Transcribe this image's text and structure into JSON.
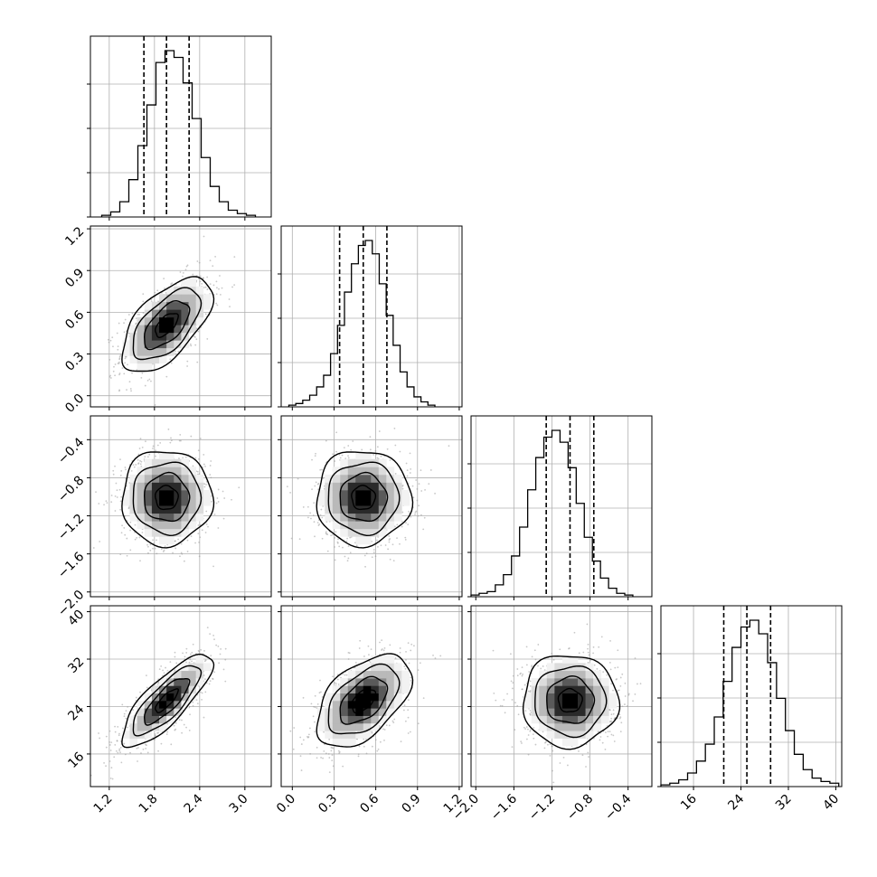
{
  "chart_data": {
    "type": "corner",
    "grid": true,
    "n_params": 4,
    "ranges": [
      [
        0.95,
        3.35
      ],
      [
        -0.08,
        1.22
      ],
      [
        -2.05,
        -0.15
      ],
      [
        10.5,
        41
      ]
    ],
    "quantiles": [
      [
        1.66,
        1.96,
        2.26
      ],
      [
        0.34,
        0.51,
        0.68
      ],
      [
        -1.26,
        -1.01,
        -0.76
      ],
      [
        21.1,
        25.0,
        29.0
      ]
    ],
    "diag_ticks": [
      [
        1.2,
        1.8,
        2.4,
        3.0
      ],
      [
        0.0,
        0.3,
        0.6,
        0.9,
        1.2
      ],
      [
        -2.0,
        -1.6,
        -1.2,
        -0.8,
        -0.4
      ],
      [
        16,
        24,
        32,
        40
      ]
    ],
    "tick_labels": [
      [
        "1.2",
        "1.8",
        "2.4",
        "3.0"
      ],
      [
        "0.0",
        "0.3",
        "0.6",
        "0.9",
        "1.2"
      ],
      [
        "−2.0",
        "−1.6",
        "−1.2",
        "−0.8",
        "−0.4"
      ],
      [
        "16",
        "24",
        "32",
        "40"
      ]
    ],
    "histograms": [
      {
        "bin_width": 0.12,
        "edges_start": 1.1,
        "counts": [
          1,
          3,
          9,
          22,
          42,
          66,
          91,
          98,
          94,
          79,
          58,
          35,
          18,
          9,
          4,
          2,
          1
        ]
      },
      {
        "bin_width": 0.05,
        "edges_start": -0.025,
        "counts": [
          1,
          2,
          4,
          7,
          12,
          19,
          32,
          49,
          69,
          86,
          97,
          100,
          92,
          74,
          55,
          37,
          21,
          12,
          6,
          3,
          1
        ]
      },
      {
        "bin_width": 0.085,
        "edges_start": -2.05,
        "counts": [
          1,
          2,
          3,
          7,
          13,
          24,
          41,
          63,
          82,
          94,
          98,
          91,
          76,
          55,
          35,
          21,
          11,
          5,
          2,
          1
        ]
      },
      {
        "bin_width": 1.5,
        "edges_start": 10.5,
        "counts": [
          1,
          2,
          4,
          8,
          15,
          25,
          41,
          62,
          82,
          94,
          98,
          90,
          73,
          52,
          33,
          19,
          10,
          5,
          3,
          2
        ]
      }
    ],
    "pairs": [
      {
        "x": 0,
        "y": 1,
        "mean": [
          1.96,
          0.51
        ],
        "sd": [
          0.3,
          0.17
        ],
        "rho": 0.6
      },
      {
        "x": 0,
        "y": 2,
        "mean": [
          1.96,
          -1.01
        ],
        "sd": [
          0.3,
          0.25
        ],
        "rho": 0.0
      },
      {
        "x": 1,
        "y": 2,
        "mean": [
          0.51,
          -1.01
        ],
        "sd": [
          0.17,
          0.25
        ],
        "rho": 0.0
      },
      {
        "x": 0,
        "y": 3,
        "mean": [
          1.96,
          25.0
        ],
        "sd": [
          0.3,
          3.9
        ],
        "rho": 0.8
      },
      {
        "x": 1,
        "y": 3,
        "mean": [
          0.51,
          25.0
        ],
        "sd": [
          0.17,
          3.9
        ],
        "rho": 0.5
      },
      {
        "x": 2,
        "y": 3,
        "mean": [
          -1.01,
          25.0
        ],
        "sd": [
          0.25,
          3.9
        ],
        "rho": 0.0
      }
    ],
    "contour_levels_sigma": [
      0.5,
      1.0,
      1.5,
      2.0
    ],
    "colors": {
      "line": "#000000",
      "grid": "#b0b0b0",
      "points": "#9a9a9a",
      "density_dark": "#000000",
      "density_light": "#f0f0f0"
    }
  }
}
